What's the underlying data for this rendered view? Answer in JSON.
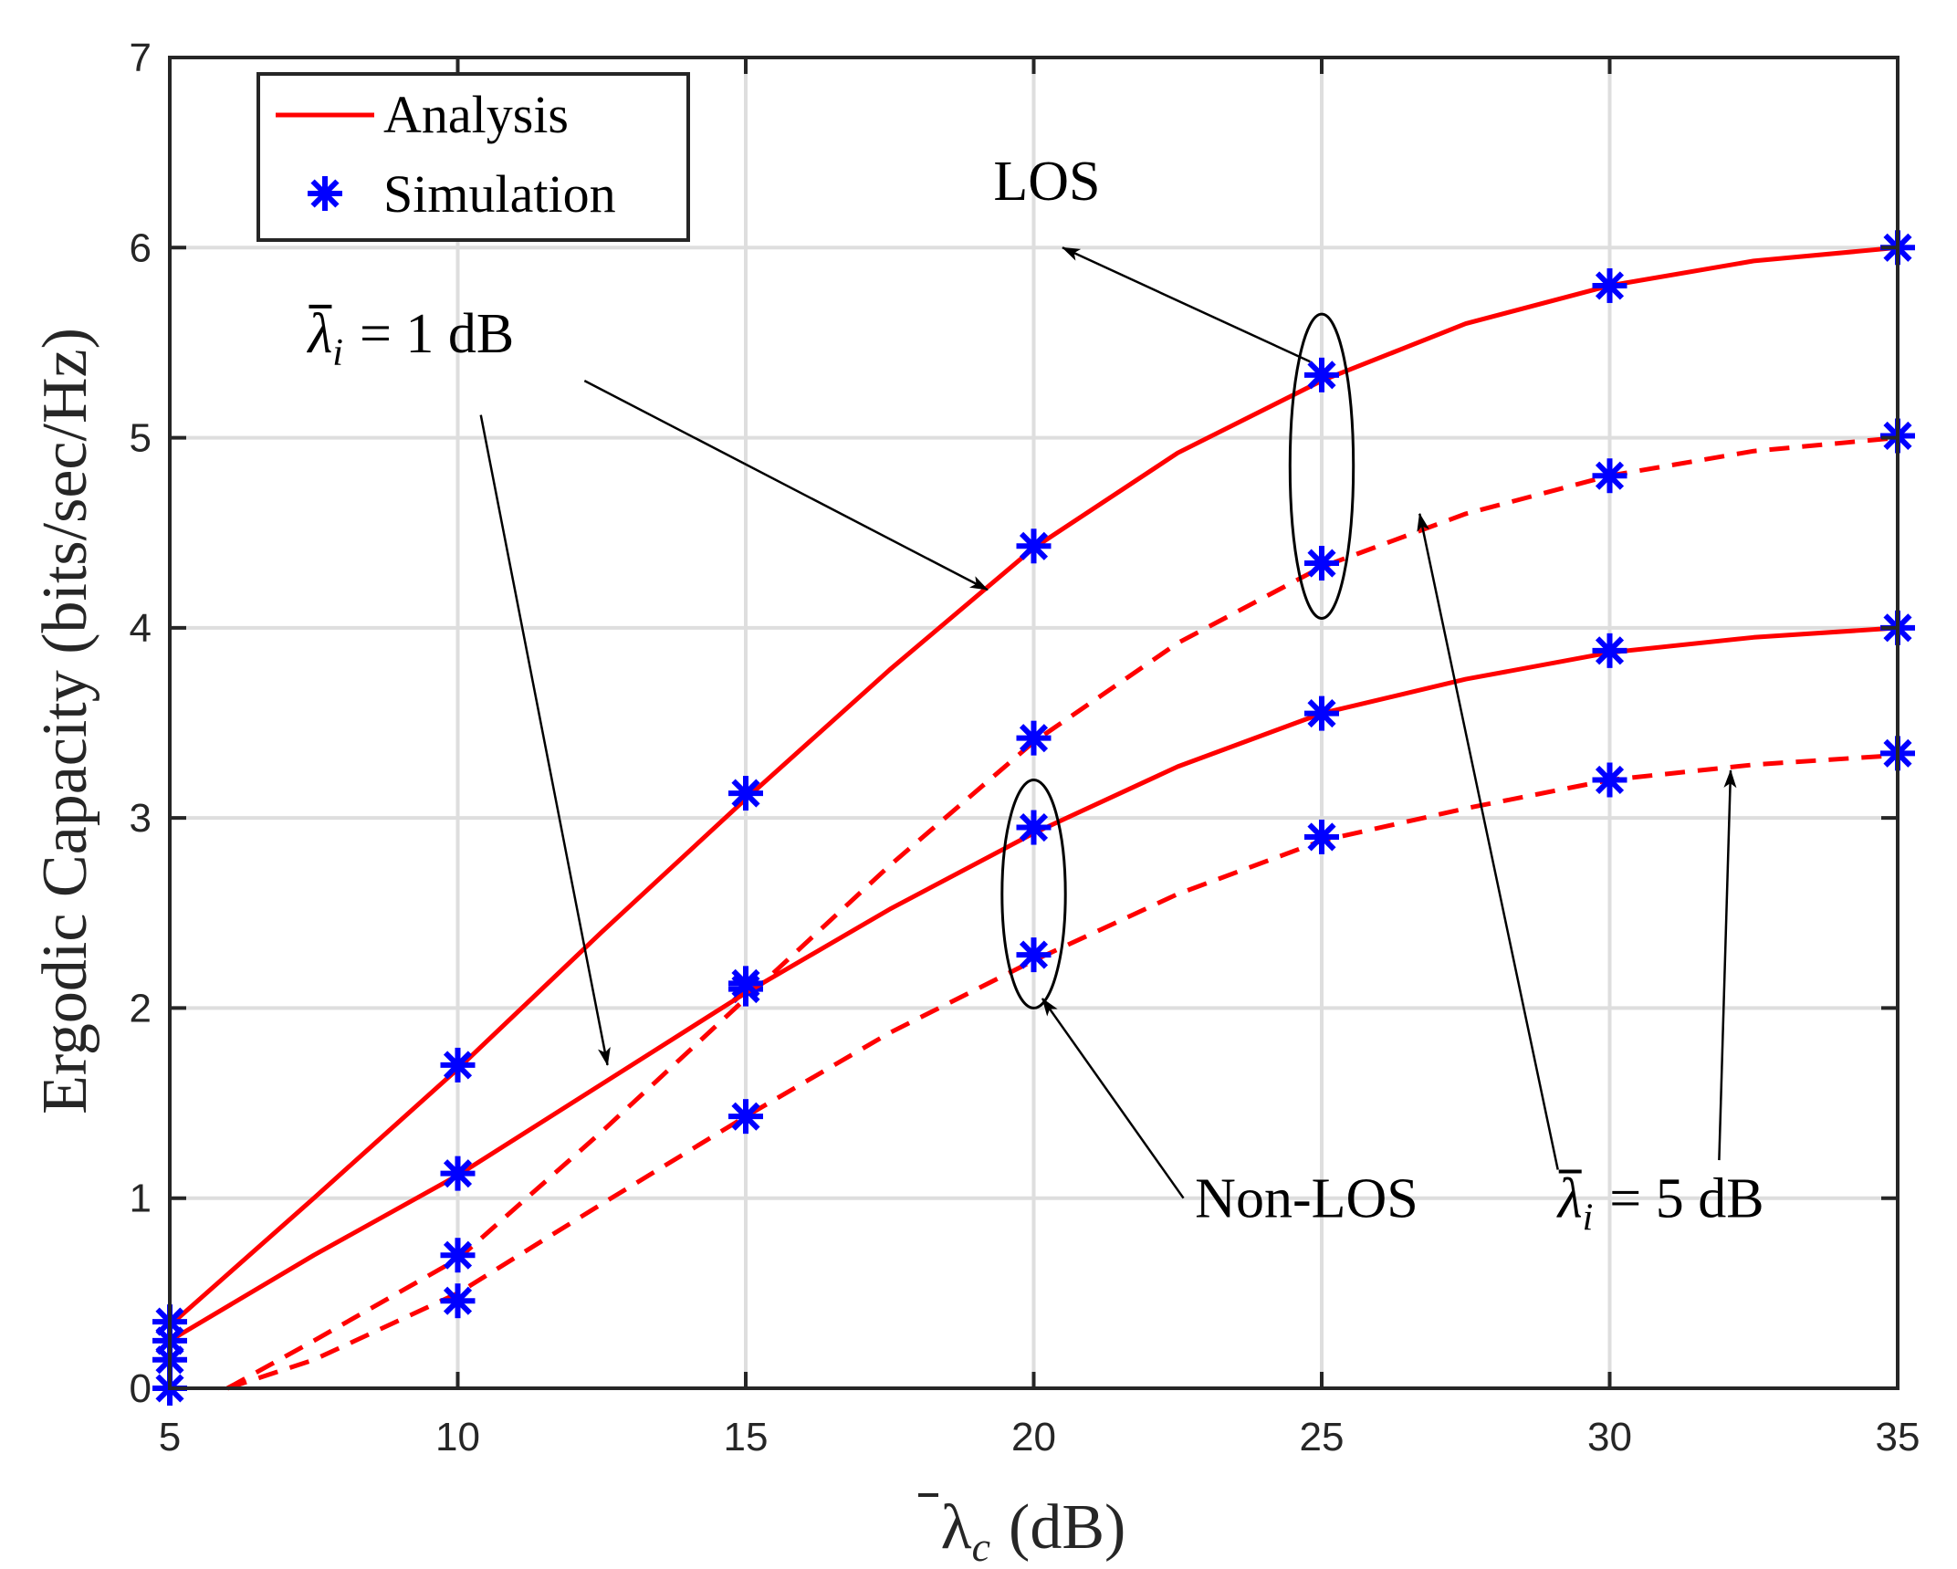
{
  "chart_data": {
    "type": "line",
    "xlabel": "λ̄c (dB)",
    "xlabel_parts": {
      "symbol": "λ",
      "subscript": "c",
      "unit": "(dB)"
    },
    "ylabel": "Ergodic Capacity (bits/sec/Hz)",
    "xlim": [
      5,
      35
    ],
    "ylim": [
      0,
      7
    ],
    "x_ticks": [
      5,
      10,
      15,
      20,
      25,
      30,
      35
    ],
    "y_ticks": [
      0,
      1,
      2,
      3,
      4,
      5,
      6,
      7
    ],
    "grid": true,
    "legend": {
      "placement": "top-left",
      "entries": [
        {
          "label": "Analysis",
          "style": "red solid line"
        },
        {
          "label": "Simulation",
          "style": "blue asterisk marker"
        }
      ]
    },
    "colors": {
      "analysis": "#ff0000",
      "simulation": "#0000ff",
      "grid": "#dedede"
    },
    "series": [
      {
        "name": "LOS, λ̄i = 1 dB",
        "line": "solid",
        "analysis": {
          "x": [
            5,
            7.5,
            10,
            12.5,
            15,
            17.5,
            20,
            22.5,
            25,
            27.5,
            30,
            32.5,
            35
          ],
          "y": [
            0.33,
            1.0,
            1.68,
            2.4,
            3.1,
            3.78,
            4.42,
            4.92,
            5.3,
            5.6,
            5.8,
            5.93,
            6.0
          ]
        },
        "simulation": {
          "x": [
            5,
            10,
            15,
            20,
            25,
            30,
            35
          ],
          "y": [
            0.35,
            1.7,
            3.13,
            4.43,
            5.33,
            5.8,
            6.0
          ]
        }
      },
      {
        "name": "LOS, λ̄i = 5 dB",
        "line": "dashed",
        "analysis": {
          "x": [
            6,
            7.5,
            10,
            12.5,
            15,
            17.5,
            20,
            22.5,
            25,
            27.5,
            30,
            32.5,
            35
          ],
          "y": [
            0,
            0.25,
            0.68,
            1.35,
            2.05,
            2.75,
            3.4,
            3.92,
            4.32,
            4.6,
            4.8,
            4.93,
            5.0
          ]
        },
        "simulation": {
          "x": [
            5,
            10,
            15,
            20,
            25,
            30,
            35
          ],
          "y": [
            0.15,
            0.7,
            2.1,
            3.42,
            4.34,
            4.8,
            5.01
          ]
        }
      },
      {
        "name": "Non-LOS, λ̄i = 1 dB",
        "line": "solid",
        "analysis": {
          "x": [
            5,
            7.5,
            10,
            12.5,
            15,
            17.5,
            20,
            22.5,
            25,
            27.5,
            30,
            32.5,
            35
          ],
          "y": [
            0.25,
            0.7,
            1.12,
            1.6,
            2.08,
            2.52,
            2.92,
            3.27,
            3.55,
            3.73,
            3.87,
            3.95,
            4.0
          ]
        },
        "simulation": {
          "x": [
            5,
            10,
            15,
            20,
            25,
            30,
            35
          ],
          "y": [
            0.25,
            1.13,
            2.13,
            2.95,
            3.55,
            3.88,
            4.0
          ]
        }
      },
      {
        "name": "Non-LOS, λ̄i = 5 dB",
        "line": "dashed",
        "analysis": {
          "x": [
            6,
            7.5,
            10,
            12.5,
            15,
            17.5,
            20,
            22.5,
            25,
            27.5,
            30,
            32.5,
            35
          ],
          "y": [
            0,
            0.15,
            0.5,
            0.97,
            1.43,
            1.87,
            2.25,
            2.6,
            2.88,
            3.05,
            3.2,
            3.28,
            3.33
          ]
        },
        "simulation": {
          "x": [
            5,
            10,
            15,
            20,
            25,
            30,
            35
          ],
          "y": [
            0.0,
            0.46,
            1.43,
            2.28,
            2.9,
            3.2,
            3.34
          ]
        }
      }
    ],
    "annotations": [
      {
        "id": "los",
        "text": "LOS",
        "text_at": [
          19.3,
          6.25
        ],
        "arrows": [
          {
            "from": [
              24.8,
              5.4
            ],
            "to": [
              20.5,
              6.0
            ]
          }
        ],
        "ellipse": {
          "center": [
            25,
            4.85
          ],
          "half_width": 0.55,
          "half_height": 0.8
        }
      },
      {
        "id": "nlos",
        "text": "Non-LOS",
        "text_at": [
          22.8,
          0.9
        ],
        "arrows": [
          {
            "from": [
              22.6,
              1.0
            ],
            "to": [
              20.15,
              2.05
            ]
          }
        ],
        "ellipse": {
          "center": [
            20,
            2.6
          ],
          "half_width": 0.55,
          "half_height": 0.6
        }
      },
      {
        "id": "li1",
        "text": "λ̄i = 1 dB",
        "parts": {
          "symbol": "λ",
          "subscript": "i",
          "rest": "= 1 dB"
        },
        "text_at": [
          7.4,
          5.45
        ],
        "arrows": [
          {
            "from": [
              12.2,
              5.3
            ],
            "to": [
              19.2,
              4.2
            ]
          },
          {
            "from": [
              10.4,
              5.12
            ],
            "to": [
              12.6,
              1.7
            ]
          }
        ]
      },
      {
        "id": "li5",
        "text": "λ̄i = 5 dB",
        "parts": {
          "symbol": "λ",
          "subscript": "i",
          "rest": "= 5 dB"
        },
        "text_at": [
          29.1,
          0.9
        ],
        "arrows": [
          {
            "from": [
              29.1,
              1.15
            ],
            "to": [
              26.7,
              4.6
            ]
          },
          {
            "from": [
              31.9,
              1.2
            ],
            "to": [
              32.1,
              3.25
            ]
          }
        ]
      }
    ]
  }
}
